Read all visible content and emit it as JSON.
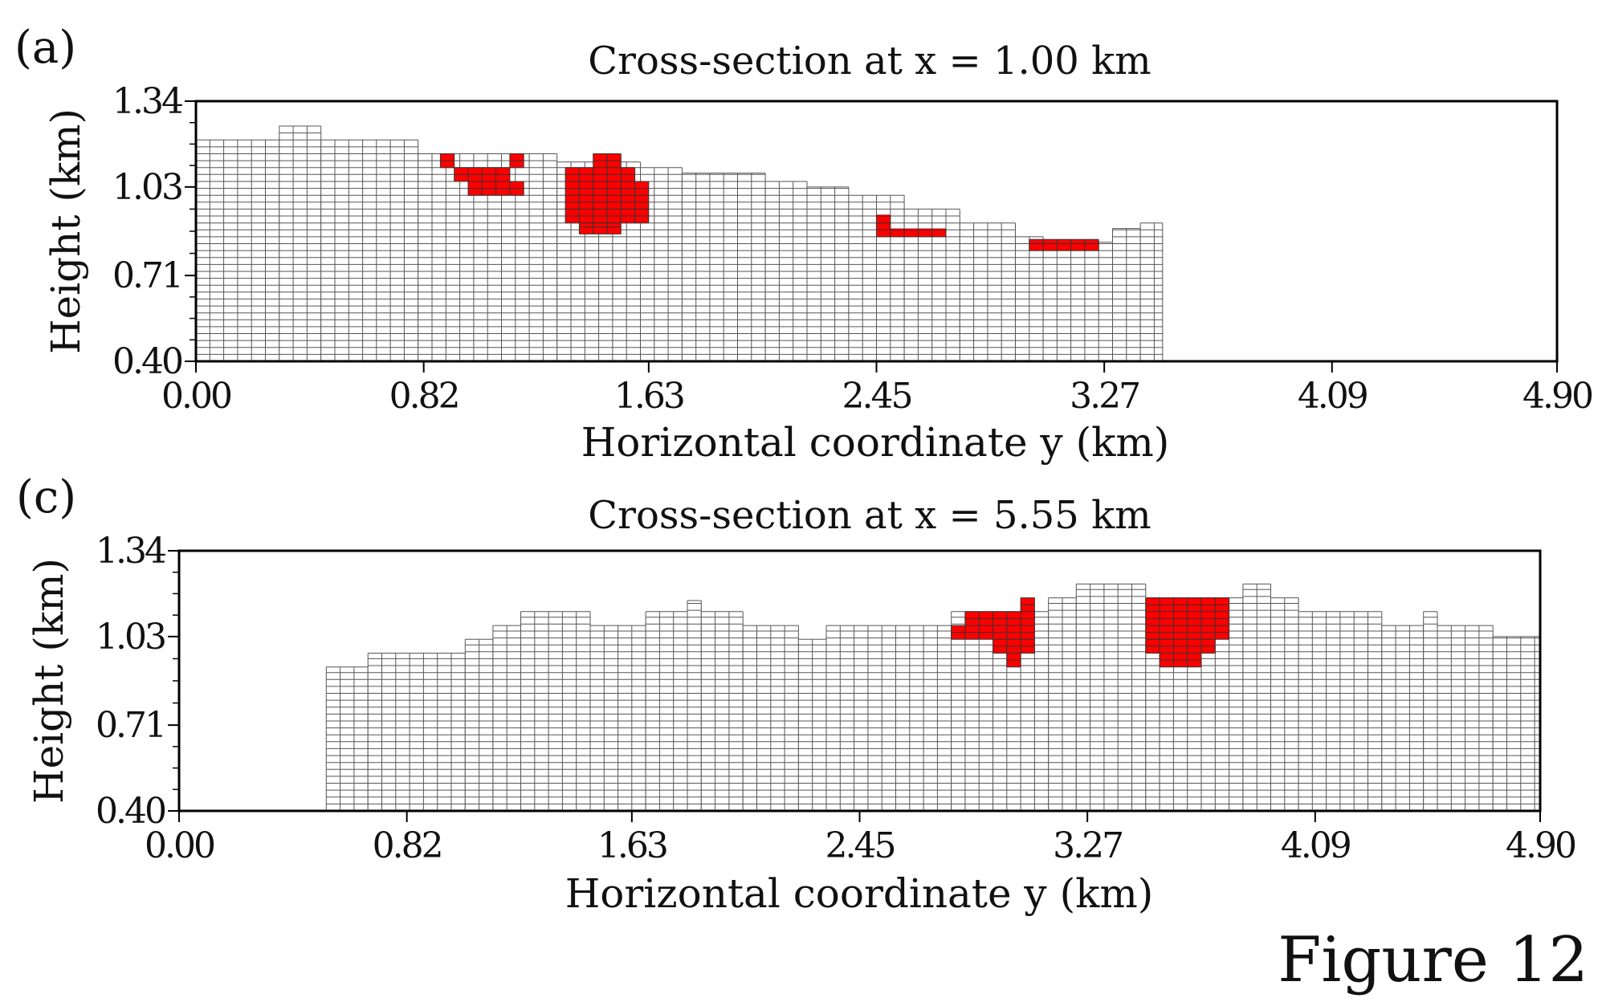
{
  "figure_label": "Figure 12",
  "chart_data": [
    {
      "type": "heatmap",
      "panel_label": "(a)",
      "title": "Cross-section at x = 1.00 km",
      "xlabel": "Horizontal coordinate y (km)",
      "ylabel": "Height (km)",
      "xlim": [
        0,
        4.9
      ],
      "ylim": [
        0.4,
        1.34
      ],
      "xticks": [
        "0.00",
        "0.82",
        "1.63",
        "2.45",
        "3.27",
        "4.09",
        "4.90"
      ],
      "yticks": [
        "0.40",
        "0.71",
        "1.03",
        "1.34"
      ],
      "cell_size_km": {
        "dy": 0.05,
        "dz": 0.025
      },
      "grid_color": "#555555",
      "cell_fill": "#ffffff",
      "highlight_color": "#ff0000",
      "surface_profile": [
        {
          "y_start": 0.0,
          "y_end": 0.3,
          "top": 1.2
        },
        {
          "y_start": 0.3,
          "y_end": 0.45,
          "top": 1.25
        },
        {
          "y_start": 0.45,
          "y_end": 0.8,
          "top": 1.2
        },
        {
          "y_start": 0.8,
          "y_end": 1.3,
          "top": 1.15
        },
        {
          "y_start": 1.3,
          "y_end": 1.6,
          "top": 1.12
        },
        {
          "y_start": 1.6,
          "y_end": 1.75,
          "top": 1.1
        },
        {
          "y_start": 1.75,
          "y_end": 2.05,
          "top": 1.08
        },
        {
          "y_start": 2.05,
          "y_end": 2.2,
          "top": 1.05
        },
        {
          "y_start": 2.2,
          "y_end": 2.35,
          "top": 1.03
        },
        {
          "y_start": 2.35,
          "y_end": 2.55,
          "top": 1.0
        },
        {
          "y_start": 2.55,
          "y_end": 2.75,
          "top": 0.95
        },
        {
          "y_start": 2.75,
          "y_end": 2.95,
          "top": 0.9
        },
        {
          "y_start": 2.95,
          "y_end": 3.05,
          "top": 0.85
        },
        {
          "y_start": 3.05,
          "y_end": 3.3,
          "top": 0.83
        },
        {
          "y_start": 3.3,
          "y_end": 3.4,
          "top": 0.88
        },
        {
          "y_start": 3.4,
          "y_end": 3.48,
          "top": 0.9
        }
      ],
      "highlight_regions": [
        {
          "y_start": 0.88,
          "y_end": 0.93,
          "z_start": 1.1,
          "z_end": 1.15
        },
        {
          "y_start": 0.93,
          "y_end": 1.13,
          "z_start": 1.05,
          "z_end": 1.1
        },
        {
          "y_start": 0.98,
          "y_end": 1.18,
          "z_start": 1.0,
          "z_end": 1.05
        },
        {
          "y_start": 1.13,
          "y_end": 1.18,
          "z_start": 1.1,
          "z_end": 1.15
        },
        {
          "y_start": 1.33,
          "y_end": 1.58,
          "z_start": 0.9,
          "z_end": 1.1
        },
        {
          "y_start": 1.58,
          "y_end": 1.63,
          "z_start": 0.9,
          "z_end": 1.05
        },
        {
          "y_start": 1.38,
          "y_end": 1.53,
          "z_start": 0.86,
          "z_end": 0.9
        },
        {
          "y_start": 1.43,
          "y_end": 1.53,
          "z_start": 1.1,
          "z_end": 1.15
        },
        {
          "y_start": 2.45,
          "y_end": 2.5,
          "z_start": 0.85,
          "z_end": 0.93
        },
        {
          "y_start": 2.5,
          "y_end": 2.7,
          "z_start": 0.85,
          "z_end": 0.88
        },
        {
          "y_start": 3.0,
          "y_end": 3.25,
          "z_start": 0.8,
          "z_end": 0.84
        }
      ]
    },
    {
      "type": "heatmap",
      "panel_label": "(c)",
      "title": "Cross-section at x = 5.55 km",
      "xlabel": "Horizontal coordinate y (km)",
      "ylabel": "Height (km)",
      "xlim": [
        0,
        4.9
      ],
      "ylim": [
        0.4,
        1.34
      ],
      "xticks": [
        "0.00",
        "0.82",
        "1.63",
        "2.45",
        "3.27",
        "4.09",
        "4.90"
      ],
      "yticks": [
        "0.40",
        "0.71",
        "1.03",
        "1.34"
      ],
      "cell_size_km": {
        "dy": 0.05,
        "dz": 0.025
      },
      "grid_color": "#555555",
      "cell_fill": "#ffffff",
      "highlight_color": "#ff0000",
      "surface_profile": [
        {
          "y_start": 0.53,
          "y_end": 0.68,
          "top": 0.92
        },
        {
          "y_start": 0.68,
          "y_end": 1.03,
          "top": 0.97
        },
        {
          "y_start": 1.03,
          "y_end": 1.13,
          "top": 1.02
        },
        {
          "y_start": 1.13,
          "y_end": 1.23,
          "top": 1.07
        },
        {
          "y_start": 1.23,
          "y_end": 1.48,
          "top": 1.12
        },
        {
          "y_start": 1.48,
          "y_end": 1.68,
          "top": 1.07
        },
        {
          "y_start": 1.68,
          "y_end": 1.83,
          "top": 1.12
        },
        {
          "y_start": 1.83,
          "y_end": 1.88,
          "top": 1.16
        },
        {
          "y_start": 1.88,
          "y_end": 2.03,
          "top": 1.12
        },
        {
          "y_start": 2.03,
          "y_end": 2.23,
          "top": 1.07
        },
        {
          "y_start": 2.23,
          "y_end": 2.33,
          "top": 1.02
        },
        {
          "y_start": 2.33,
          "y_end": 2.78,
          "top": 1.07
        },
        {
          "y_start": 2.78,
          "y_end": 3.13,
          "top": 1.12
        },
        {
          "y_start": 3.13,
          "y_end": 3.23,
          "top": 1.17
        },
        {
          "y_start": 3.23,
          "y_end": 3.48,
          "top": 1.22
        },
        {
          "y_start": 3.48,
          "y_end": 3.53,
          "top": 1.17
        },
        {
          "y_start": 3.53,
          "y_end": 3.83,
          "top": 1.17
        },
        {
          "y_start": 3.83,
          "y_end": 3.93,
          "top": 1.22
        },
        {
          "y_start": 3.93,
          "y_end": 4.03,
          "top": 1.17
        },
        {
          "y_start": 4.03,
          "y_end": 4.33,
          "top": 1.12
        },
        {
          "y_start": 4.33,
          "y_end": 4.48,
          "top": 1.07
        },
        {
          "y_start": 4.48,
          "y_end": 4.53,
          "top": 1.12
        },
        {
          "y_start": 4.53,
          "y_end": 4.73,
          "top": 1.07
        },
        {
          "y_start": 4.73,
          "y_end": 4.9,
          "top": 1.03
        }
      ],
      "highlight_regions": [
        {
          "y_start": 2.78,
          "y_end": 2.83,
          "z_start": 1.02,
          "z_end": 1.07
        },
        {
          "y_start": 2.83,
          "y_end": 3.08,
          "z_start": 1.02,
          "z_end": 1.12
        },
        {
          "y_start": 2.93,
          "y_end": 3.08,
          "z_start": 0.97,
          "z_end": 1.02
        },
        {
          "y_start": 2.98,
          "y_end": 3.03,
          "z_start": 0.92,
          "z_end": 0.97
        },
        {
          "y_start": 3.03,
          "y_end": 3.08,
          "z_start": 1.12,
          "z_end": 1.17
        },
        {
          "y_start": 3.48,
          "y_end": 3.78,
          "z_start": 1.02,
          "z_end": 1.17
        },
        {
          "y_start": 3.48,
          "y_end": 3.73,
          "z_start": 0.97,
          "z_end": 1.02
        },
        {
          "y_start": 3.53,
          "y_end": 3.68,
          "z_start": 0.92,
          "z_end": 0.97
        }
      ]
    }
  ]
}
